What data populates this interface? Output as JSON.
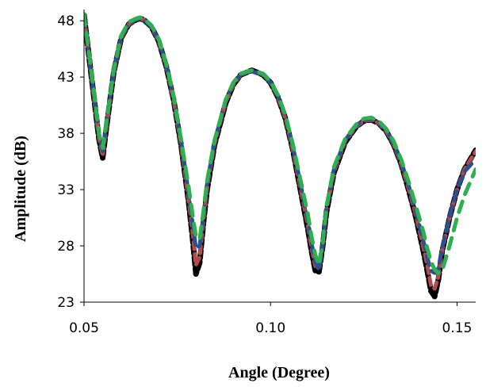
{
  "chart_data": {
    "type": "line",
    "xlabel": "Angle (Degree)",
    "ylabel": "Amplitude  (dB)",
    "xlim": [
      0.05,
      0.155
    ],
    "ylim": [
      23,
      49
    ],
    "xticks": [
      0.05,
      0.1,
      0.15
    ],
    "xtick_labels": [
      "0.05",
      "0.10",
      "0.15"
    ],
    "yticks": [
      23,
      28,
      33,
      38,
      43,
      48
    ],
    "ytick_labels": [
      "23",
      "28",
      "33",
      "38",
      "43",
      "48"
    ],
    "grid": false,
    "legend": "none",
    "series": [
      {
        "color": "#000000",
        "style": "dashed-thick",
        "x": [
          0.05,
          0.052,
          0.054,
          0.055,
          0.056,
          0.058,
          0.06,
          0.062,
          0.064,
          0.065,
          0.066,
          0.068,
          0.07,
          0.072,
          0.074,
          0.076,
          0.078,
          0.079,
          0.08,
          0.081,
          0.082,
          0.083,
          0.085,
          0.088,
          0.09,
          0.092,
          0.095,
          0.098,
          0.1,
          0.102,
          0.104,
          0.106,
          0.108,
          0.11,
          0.111,
          0.112,
          0.113,
          0.114,
          0.115,
          0.117,
          0.12,
          0.123,
          0.125,
          0.127,
          0.129,
          0.131,
          0.133,
          0.135,
          0.137,
          0.139,
          0.141,
          0.142,
          0.143,
          0.144,
          0.145,
          0.146,
          0.148,
          0.15,
          0.152,
          0.155
        ],
        "values": [
          48.5,
          43,
          37.5,
          35.8,
          38.5,
          43.5,
          46.5,
          47.7,
          48.1,
          48.2,
          48.1,
          47.5,
          46.2,
          44,
          41,
          37,
          32,
          29,
          25.5,
          26.5,
          30,
          33,
          37,
          40.7,
          42.3,
          43.2,
          43.6,
          43.2,
          42.5,
          41.2,
          39.3,
          36.5,
          33,
          29.5,
          27.5,
          25.8,
          25.7,
          28,
          31,
          34.5,
          37.2,
          38.6,
          39.1,
          39.2,
          38.9,
          38.2,
          37,
          35.3,
          33,
          30.5,
          27.5,
          25.8,
          24,
          23.5,
          25,
          27.5,
          30.5,
          33,
          34.8,
          36.5
        ]
      },
      {
        "color": "#b24b4b",
        "style": "dashed",
        "x": [
          0.05,
          0.052,
          0.054,
          0.055,
          0.056,
          0.058,
          0.06,
          0.062,
          0.064,
          0.065,
          0.066,
          0.068,
          0.07,
          0.072,
          0.074,
          0.076,
          0.078,
          0.079,
          0.08,
          0.081,
          0.082,
          0.083,
          0.085,
          0.088,
          0.09,
          0.092,
          0.095,
          0.098,
          0.1,
          0.102,
          0.104,
          0.106,
          0.108,
          0.11,
          0.111,
          0.112,
          0.113,
          0.114,
          0.115,
          0.117,
          0.12,
          0.123,
          0.125,
          0.127,
          0.129,
          0.131,
          0.133,
          0.135,
          0.137,
          0.139,
          0.141,
          0.142,
          0.143,
          0.144,
          0.145,
          0.146,
          0.148,
          0.15,
          0.152,
          0.155
        ],
        "values": [
          48.4,
          43,
          37.6,
          36,
          38.6,
          43.5,
          46.5,
          47.7,
          48.1,
          48.2,
          48.1,
          47.5,
          46.2,
          44,
          41,
          37,
          32.2,
          29.5,
          26.3,
          27,
          30.2,
          33.2,
          37.1,
          40.8,
          42.3,
          43.2,
          43.6,
          43.2,
          42.5,
          41.2,
          39.3,
          36.5,
          33.2,
          29.8,
          27.8,
          26.2,
          26.2,
          28.2,
          31.2,
          34.6,
          37.3,
          38.6,
          39.1,
          39.2,
          38.9,
          38.2,
          37,
          35.3,
          33.1,
          30.7,
          27.8,
          26.3,
          24.5,
          24.2,
          25.3,
          27.6,
          30.5,
          33,
          34.8,
          36.4
        ]
      },
      {
        "color": "#2e4f8f",
        "style": "dashed",
        "x": [
          0.05,
          0.052,
          0.054,
          0.055,
          0.056,
          0.058,
          0.06,
          0.062,
          0.064,
          0.065,
          0.066,
          0.068,
          0.07,
          0.072,
          0.074,
          0.076,
          0.078,
          0.079,
          0.08,
          0.081,
          0.082,
          0.083,
          0.085,
          0.088,
          0.09,
          0.092,
          0.095,
          0.098,
          0.1,
          0.102,
          0.104,
          0.106,
          0.108,
          0.11,
          0.111,
          0.112,
          0.113,
          0.114,
          0.115,
          0.117,
          0.12,
          0.123,
          0.125,
          0.127,
          0.129,
          0.131,
          0.133,
          0.135,
          0.137,
          0.139,
          0.141,
          0.142,
          0.143,
          0.144,
          0.145,
          0.146,
          0.148,
          0.15,
          0.152,
          0.155
        ],
        "values": [
          48.3,
          43.2,
          37.8,
          36.4,
          38.8,
          43.6,
          46.6,
          47.8,
          48.1,
          48.2,
          48.1,
          47.5,
          46.3,
          44.1,
          41.2,
          37.3,
          32.8,
          30.3,
          27.8,
          28,
          30.6,
          33.5,
          37.3,
          40.9,
          42.4,
          43.2,
          43.5,
          43.2,
          42.5,
          41.3,
          39.5,
          36.8,
          33.6,
          30.3,
          28.2,
          26.6,
          25.8,
          28,
          31.3,
          34.8,
          37.4,
          38.7,
          39.2,
          39.3,
          39,
          38.3,
          37.1,
          35.5,
          33.4,
          31,
          28.4,
          27,
          25.8,
          25.6,
          26,
          27.8,
          30.6,
          33,
          34.6,
          35.7
        ]
      },
      {
        "color": "#2db04f",
        "style": "dashed",
        "x": [
          0.05,
          0.052,
          0.054,
          0.055,
          0.056,
          0.058,
          0.06,
          0.062,
          0.064,
          0.065,
          0.066,
          0.068,
          0.07,
          0.072,
          0.074,
          0.076,
          0.078,
          0.079,
          0.08,
          0.081,
          0.082,
          0.083,
          0.085,
          0.088,
          0.09,
          0.092,
          0.095,
          0.098,
          0.1,
          0.102,
          0.104,
          0.106,
          0.108,
          0.11,
          0.111,
          0.112,
          0.113,
          0.114,
          0.115,
          0.117,
          0.12,
          0.123,
          0.125,
          0.127,
          0.129,
          0.131,
          0.133,
          0.135,
          0.137,
          0.139,
          0.141,
          0.142,
          0.143,
          0.144,
          0.145,
          0.146,
          0.148,
          0.15,
          0.152,
          0.155
        ],
        "values": [
          48.6,
          43.4,
          38,
          36.7,
          39,
          43.7,
          46.7,
          47.9,
          48.2,
          48.3,
          48.2,
          47.6,
          46.4,
          44.2,
          41.3,
          37.5,
          33.3,
          31,
          28.8,
          28.6,
          31,
          33.8,
          37.4,
          41,
          42.5,
          43.3,
          43.6,
          43.3,
          42.6,
          41.4,
          39.6,
          37,
          33.9,
          30.8,
          28.8,
          27.2,
          26.3,
          28.3,
          31.5,
          35,
          37.5,
          38.8,
          39.3,
          39.4,
          39.1,
          38.4,
          37.3,
          35.7,
          33.7,
          31.5,
          29.2,
          27.8,
          26.6,
          25.9,
          25.6,
          25.8,
          28,
          30.5,
          32.5,
          34.8
        ]
      }
    ]
  }
}
